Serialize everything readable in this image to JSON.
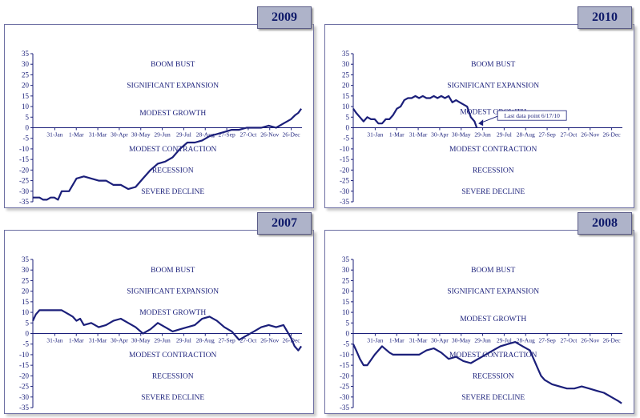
{
  "chart_data": [
    {
      "type": "line",
      "title": "2009",
      "ylim": [
        -35,
        35
      ],
      "y_ticks": [
        "35",
        "30",
        "25",
        "20",
        "15",
        "10",
        "5",
        "0",
        "-5",
        "-10",
        "-15",
        "-20",
        "-25",
        "-30",
        "-35"
      ],
      "x_tick_labels": [
        "31-Jan",
        "1-Mar",
        "31-Mar",
        "30-Apr",
        "30-May",
        "29-Jun",
        "29-Jul",
        "28-Aug",
        "27-Sep",
        "27-Oct",
        "26-Nov",
        "26-Dec"
      ],
      "zones": [
        {
          "label": "BOOM BUST",
          "y": 30
        },
        {
          "label": "SIGNIFICANT EXPANSION",
          "y": 20
        },
        {
          "label": "MODEST GROWTH",
          "y": 7
        },
        {
          "label": "MODEST CONTRACTION",
          "y": -10
        },
        {
          "label": "RECESSION",
          "y": -20
        },
        {
          "label": "SEVERE DECLINE",
          "y": -30
        }
      ],
      "annotation": "",
      "series": [
        {
          "x": [
            1,
            10,
            15,
            20,
            25,
            30,
            35,
            40,
            50,
            60,
            70,
            80,
            90,
            100,
            110,
            120,
            125,
            130,
            140,
            150,
            160,
            170,
            180,
            190,
            200,
            210,
            220,
            230,
            240,
            250,
            260,
            270,
            280,
            290,
            300,
            310,
            320,
            330,
            340,
            350,
            356,
            360,
            364
          ],
          "y": [
            -33,
            -33,
            -34,
            -34,
            -33,
            -33,
            -34,
            -30,
            -30,
            -24,
            -23,
            -24,
            -25,
            -25,
            -27,
            -27,
            -28,
            -29,
            -28,
            -24,
            -20,
            -17,
            -16,
            -14,
            -10,
            -7,
            -7,
            -6,
            -4,
            -3,
            -2,
            -1,
            -1,
            0,
            0,
            0,
            1,
            0,
            2,
            4,
            6,
            7,
            9
          ]
        }
      ]
    },
    {
      "type": "line",
      "title": "2010",
      "ylim": [
        -35,
        35
      ],
      "y_ticks": [
        "35",
        "30",
        "25",
        "20",
        "15",
        "10",
        "5",
        "0",
        "-5",
        "-10",
        "-15",
        "-20",
        "-25",
        "-30",
        "-35"
      ],
      "x_tick_labels": [
        "31-Jan",
        "1-Mar",
        "31-Mar",
        "30-Apr",
        "30-May",
        "29-Jun",
        "29-Jul",
        "28-Aug",
        "27-Sep",
        "27-Oct",
        "26-Nov",
        "26-Dec"
      ],
      "zones": [
        {
          "label": "BOOM BUST",
          "y": 30
        },
        {
          "label": "SIGNIFICANT EXPANSION",
          "y": 20
        },
        {
          "label": "MODEST GROWTH",
          "y": 7.5
        },
        {
          "label": "MODEST CONTRACTION",
          "y": -10
        },
        {
          "label": "RECESSION",
          "y": -20
        },
        {
          "label": "SEVERE DECLINE",
          "y": -30
        }
      ],
      "annotation": "Last data point 6/17/10",
      "annotation_point": {
        "x": 168,
        "y": 2
      },
      "series": [
        {
          "x": [
            1,
            5,
            10,
            15,
            20,
            25,
            30,
            35,
            40,
            45,
            50,
            55,
            60,
            65,
            70,
            75,
            80,
            85,
            90,
            95,
            100,
            105,
            110,
            115,
            120,
            125,
            130,
            135,
            140,
            145,
            150,
            155,
            160,
            165,
            168
          ],
          "y": [
            9,
            7,
            5,
            3,
            5,
            4,
            4,
            2,
            2,
            4,
            4,
            6,
            9,
            10,
            13,
            14,
            14,
            15,
            14,
            15,
            14,
            14,
            15,
            14,
            15,
            14,
            15,
            12,
            13,
            12,
            11,
            10,
            5,
            3,
            0
          ]
        }
      ]
    },
    {
      "type": "line",
      "title": "2007",
      "ylim": [
        -35,
        35
      ],
      "y_ticks": [
        "35",
        "30",
        "25",
        "20",
        "15",
        "10",
        "5",
        "0",
        "-5",
        "-10",
        "-15",
        "-20",
        "-25",
        "-30",
        "-35"
      ],
      "x_tick_labels": [
        "31-Jan",
        "1-Mar",
        "31-Mar",
        "30-Apr",
        "30-May",
        "29-Jun",
        "29-Jul",
        "28-Aug",
        "27-Sep",
        "27-Oct",
        "26-Nov",
        "26-Dec"
      ],
      "zones": [
        {
          "label": "BOOM BUST",
          "y": 30
        },
        {
          "label": "SIGNIFICANT EXPANSION",
          "y": 20
        },
        {
          "label": "MODEST GROWTH",
          "y": 10
        },
        {
          "label": "MODEST CONTRACTION",
          "y": -10
        },
        {
          "label": "RECESSION",
          "y": -20
        },
        {
          "label": "SEVERE DECLINE",
          "y": -30
        }
      ],
      "annotation": "",
      "series": [
        {
          "x": [
            1,
            5,
            10,
            15,
            20,
            30,
            40,
            50,
            55,
            60,
            65,
            70,
            80,
            90,
            100,
            110,
            120,
            130,
            140,
            150,
            160,
            170,
            180,
            190,
            200,
            210,
            220,
            230,
            240,
            250,
            260,
            270,
            280,
            290,
            300,
            310,
            320,
            330,
            340,
            350,
            355,
            360,
            364
          ],
          "y": [
            6,
            9,
            11,
            11,
            11,
            11,
            11,
            9,
            8,
            6,
            7,
            4,
            5,
            3,
            4,
            6,
            7,
            5,
            3,
            0,
            2,
            5,
            3,
            1,
            2,
            3,
            4,
            7,
            8,
            6,
            3,
            1,
            -3,
            -1,
            1,
            3,
            4,
            3,
            4,
            -2,
            -6,
            -8,
            -6
          ]
        }
      ]
    },
    {
      "type": "line",
      "title": "2008",
      "ylim": [
        -35,
        35
      ],
      "y_ticks": [
        "35",
        "30",
        "25",
        "20",
        "15",
        "10",
        "5",
        "0",
        "-5",
        "-10",
        "-15",
        "-20",
        "-25",
        "-30",
        "-35"
      ],
      "x_tick_labels": [
        "31-Jan",
        "1-Mar",
        "31-Mar",
        "30-Apr",
        "30-May",
        "29-Jun",
        "29-Jul",
        "28-Aug",
        "27-Sep",
        "27-Oct",
        "26-Nov",
        "26-Dec"
      ],
      "zones": [
        {
          "label": "BOOM BUST",
          "y": 30
        },
        {
          "label": "SIGNIFICANT EXPANSION",
          "y": 20
        },
        {
          "label": "MODEST GROWTH",
          "y": 7
        },
        {
          "label": "MODEST CONTRACTION",
          "y": -10
        },
        {
          "label": "RECESSION",
          "y": -20
        },
        {
          "label": "SEVERE DECLINE",
          "y": -30
        }
      ],
      "annotation": "",
      "series": [
        {
          "x": [
            1,
            5,
            10,
            15,
            20,
            30,
            40,
            50,
            55,
            60,
            70,
            80,
            90,
            100,
            110,
            120,
            130,
            140,
            150,
            160,
            170,
            180,
            190,
            200,
            210,
            220,
            230,
            240,
            245,
            250,
            255,
            260,
            270,
            280,
            290,
            300,
            310,
            320,
            330,
            340,
            350,
            360,
            364
          ],
          "y": [
            -5,
            -8,
            -12,
            -15,
            -15,
            -10,
            -6,
            -9,
            -10,
            -10,
            -10,
            -10,
            -10,
            -8,
            -7,
            -9,
            -12,
            -11,
            -13,
            -14,
            -12,
            -10,
            -8,
            -6,
            -5,
            -4,
            -6,
            -8,
            -12,
            -16,
            -20,
            -22,
            -24,
            -25,
            -26,
            -26,
            -25,
            -26,
            -27,
            -28,
            -30,
            -32,
            -33
          ]
        }
      ]
    }
  ]
}
